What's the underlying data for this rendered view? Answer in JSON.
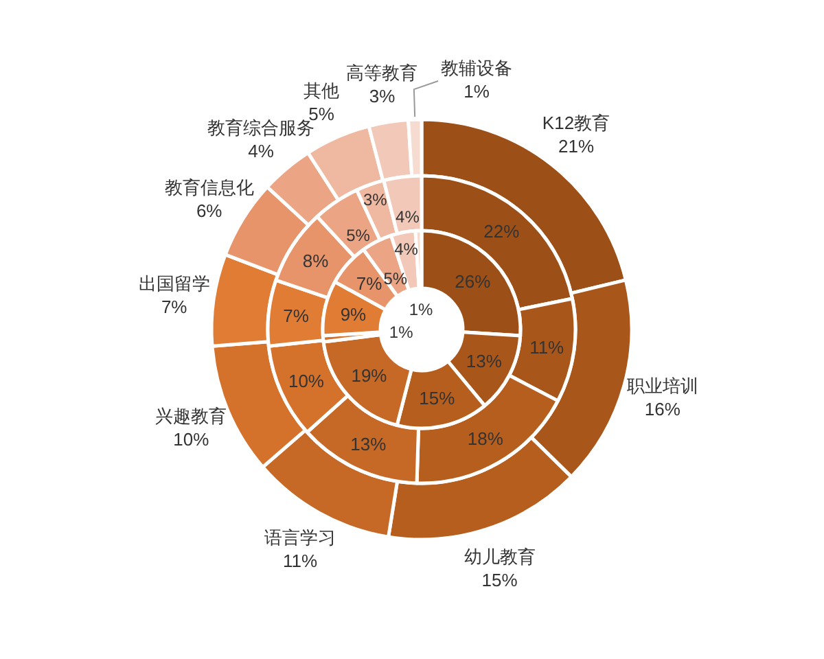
{
  "chart_data": {
    "type": "donut",
    "categories": [
      "K12教育",
      "职业培训",
      "幼儿教育",
      "语言学习",
      "兴趣教育",
      "出国留学",
      "教育信息化",
      "教育综合服务",
      "其他",
      "高等教育",
      "教辅设备"
    ],
    "colors": [
      "#9c4f16",
      "#a9561a",
      "#b65e1e",
      "#c66826",
      "#d4722c",
      "#e07c34",
      "#e8946a",
      "#eba585",
      "#efb8a0",
      "#f2c9b8",
      "#f5dbd0"
    ],
    "series": [
      {
        "values": [
          21,
          16,
          15,
          11,
          10,
          7,
          6,
          4,
          5,
          3,
          1
        ],
        "value_labels": [
          "21%",
          "16%",
          "15%",
          "11%",
          "10%",
          "7%",
          "6%",
          "4%",
          "5%",
          "3%",
          "1%"
        ]
      },
      {
        "values": [
          22,
          11,
          18,
          13,
          10,
          7,
          8,
          5,
          3,
          4,
          null
        ],
        "value_labels": [
          "22%",
          "11%",
          "18%",
          "13%",
          "10%",
          "7%",
          "8%",
          "5%",
          "3%",
          "4%",
          null
        ]
      },
      {
        "values": [
          26,
          13,
          15,
          19,
          1,
          9,
          7,
          5,
          null,
          4,
          1
        ],
        "value_labels": [
          "26%",
          "13%",
          "15%",
          "19%",
          "1%",
          "9%",
          "7%",
          "5%",
          null,
          "4%",
          "1%"
        ]
      }
    ]
  }
}
